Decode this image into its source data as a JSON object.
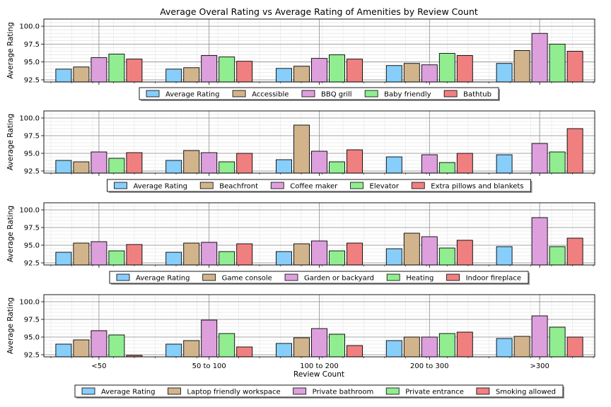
{
  "chart_data": {
    "type": "bar",
    "title": "Average Overal Rating vs Average Rating of Amenities by Review Count",
    "categories": [
      "<50",
      "50 to 100",
      "100 to 200",
      "200 to 300",
      ">300"
    ],
    "xlabel": "Review Count",
    "ylabel": "Average Rating",
    "ylim": [
      92.2,
      101.0
    ],
    "yticks": [
      "92.5",
      "95.0",
      "97.5",
      "100.0"
    ],
    "grid": true,
    "legend_placement": "below each panel",
    "colors": [
      "#87cefa",
      "#d2b48c",
      "#dda0dd",
      "#90ee90",
      "#f08080"
    ],
    "panels": [
      {
        "series": [
          {
            "name": "Average Rating",
            "values": [
              94.0,
              94.0,
              94.1,
              94.5,
              94.8
            ]
          },
          {
            "name": "Accessible",
            "values": [
              94.3,
              94.2,
              94.4,
              94.8,
              96.6
            ]
          },
          {
            "name": "BBQ grill",
            "values": [
              95.6,
              95.9,
              95.5,
              94.6,
              99.0
            ]
          },
          {
            "name": "Baby friendly",
            "values": [
              96.1,
              95.7,
              96.0,
              96.2,
              97.5
            ]
          },
          {
            "name": "Bathtub",
            "values": [
              95.4,
              95.1,
              95.4,
              95.9,
              96.5
            ]
          }
        ]
      },
      {
        "series": [
          {
            "name": "Average Rating",
            "values": [
              94.0,
              94.0,
              94.1,
              94.5,
              94.8
            ]
          },
          {
            "name": "Beachfront",
            "values": [
              93.8,
              95.4,
              99.0,
              null,
              null
            ]
          },
          {
            "name": "Coffee maker",
            "values": [
              95.2,
              95.1,
              95.3,
              94.8,
              96.4
            ]
          },
          {
            "name": "Elevator",
            "values": [
              94.3,
              93.8,
              93.8,
              93.7,
              95.2
            ]
          },
          {
            "name": "Extra pillows and blankets",
            "values": [
              95.1,
              95.0,
              95.5,
              95.0,
              98.5
            ]
          }
        ]
      },
      {
        "series": [
          {
            "name": "Average Rating",
            "values": [
              94.0,
              94.0,
              94.1,
              94.5,
              94.8
            ]
          },
          {
            "name": "Game console",
            "values": [
              95.3,
              95.3,
              95.2,
              96.7,
              null
            ]
          },
          {
            "name": "Garden or backyard",
            "values": [
              95.5,
              95.4,
              95.6,
              96.2,
              98.9
            ]
          },
          {
            "name": "Heating",
            "values": [
              94.2,
              94.1,
              94.2,
              94.6,
              94.8
            ]
          },
          {
            "name": "Indoor fireplace",
            "values": [
              95.1,
              95.2,
              95.3,
              95.7,
              96.0
            ]
          }
        ]
      },
      {
        "series": [
          {
            "name": "Average Rating",
            "values": [
              94.0,
              94.0,
              94.1,
              94.5,
              94.8
            ]
          },
          {
            "name": "Laptop friendly workspace",
            "values": [
              94.6,
              94.5,
              94.9,
              95.0,
              95.1
            ]
          },
          {
            "name": "Private bathroom",
            "values": [
              95.9,
              97.4,
              96.2,
              95.0,
              98.0
            ]
          },
          {
            "name": "Private entrance",
            "values": [
              95.3,
              95.5,
              95.4,
              95.5,
              96.4
            ]
          },
          {
            "name": "Smoking allowed",
            "values": [
              92.4,
              93.6,
              93.8,
              95.7,
              95.0
            ]
          }
        ]
      }
    ]
  }
}
